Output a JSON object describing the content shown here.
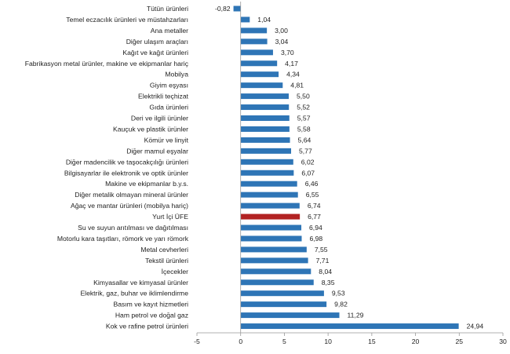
{
  "chart_data": {
    "type": "bar",
    "orientation": "horizontal",
    "categories": [
      "Tütün ürünleri",
      "Temel eczacılık ürünleri ve müstahzarları",
      "Ana metaller",
      "Diğer ulaşım araçları",
      "Kağıt ve kağıt ürünleri",
      "Fabrikasyon metal ürünler, makine ve ekipmanlar hariç",
      "Mobilya",
      "Giyim eşyası",
      "Elektrikli teçhizat",
      "Gıda ürünleri",
      "Deri ve ilgili ürünler",
      "Kauçuk ve plastik ürünler",
      "Kömür ve linyit",
      "Diğer mamul eşyalar",
      "Diğer madencilik ve taşocakçılığı ürünleri",
      "Bilgisayarlar ile elektronik ve optik ürünler",
      "Makine ve ekipmanlar b.y.s.",
      "Diğer metalik olmayan mineral ürünler",
      "Ağaç ve mantar ürünleri (mobilya hariç)",
      "Yurt İçi ÜFE",
      "Su ve suyun arıtılması ve dağıtılması",
      "Motorlu kara taşıtları, römork ve yarı römork",
      "Metal cevherleri",
      "Tekstil ürünleri",
      "İçecekler",
      "Kimyasallar ve kimyasal ürünler",
      "Elektrik, gaz, buhar ve iklimlendirme",
      "Basım ve kayıt hizmetleri",
      "Ham petrol ve doğal gaz",
      "Kok ve rafine petrol ürünleri"
    ],
    "values": [
      -0.82,
      1.04,
      3.0,
      3.04,
      3.7,
      4.17,
      4.34,
      4.81,
      5.5,
      5.52,
      5.57,
      5.58,
      5.64,
      5.77,
      6.02,
      6.07,
      6.46,
      6.55,
      6.74,
      6.77,
      6.94,
      6.98,
      7.55,
      7.71,
      8.04,
      8.35,
      9.53,
      9.82,
      11.29,
      24.94
    ],
    "value_labels": [
      "-0,82",
      "1,04",
      "3,00",
      "3,04",
      "3,70",
      "4,17",
      "4,34",
      "4,81",
      "5,50",
      "5,52",
      "5,57",
      "5,58",
      "5,64",
      "5,77",
      "6,02",
      "6,07",
      "6,46",
      "6,55",
      "6,74",
      "6,77",
      "6,94",
      "6,98",
      "7,55",
      "7,71",
      "8,04",
      "8,35",
      "9,53",
      "9,82",
      "11,29",
      "24,94"
    ],
    "highlight_category": "Yurt İçi ÜFE",
    "colors": {
      "bar": "#2e75b6",
      "highlight": "#b22222"
    },
    "xlim": [
      -5,
      30
    ],
    "x_ticks": [
      "-5",
      "0",
      "5",
      "10",
      "15",
      "20",
      "25",
      "30"
    ],
    "x_tick_values": [
      -5,
      0,
      5,
      10,
      15,
      20,
      25,
      30
    ],
    "grid": false,
    "title": "",
    "xlabel": "",
    "ylabel": ""
  }
}
